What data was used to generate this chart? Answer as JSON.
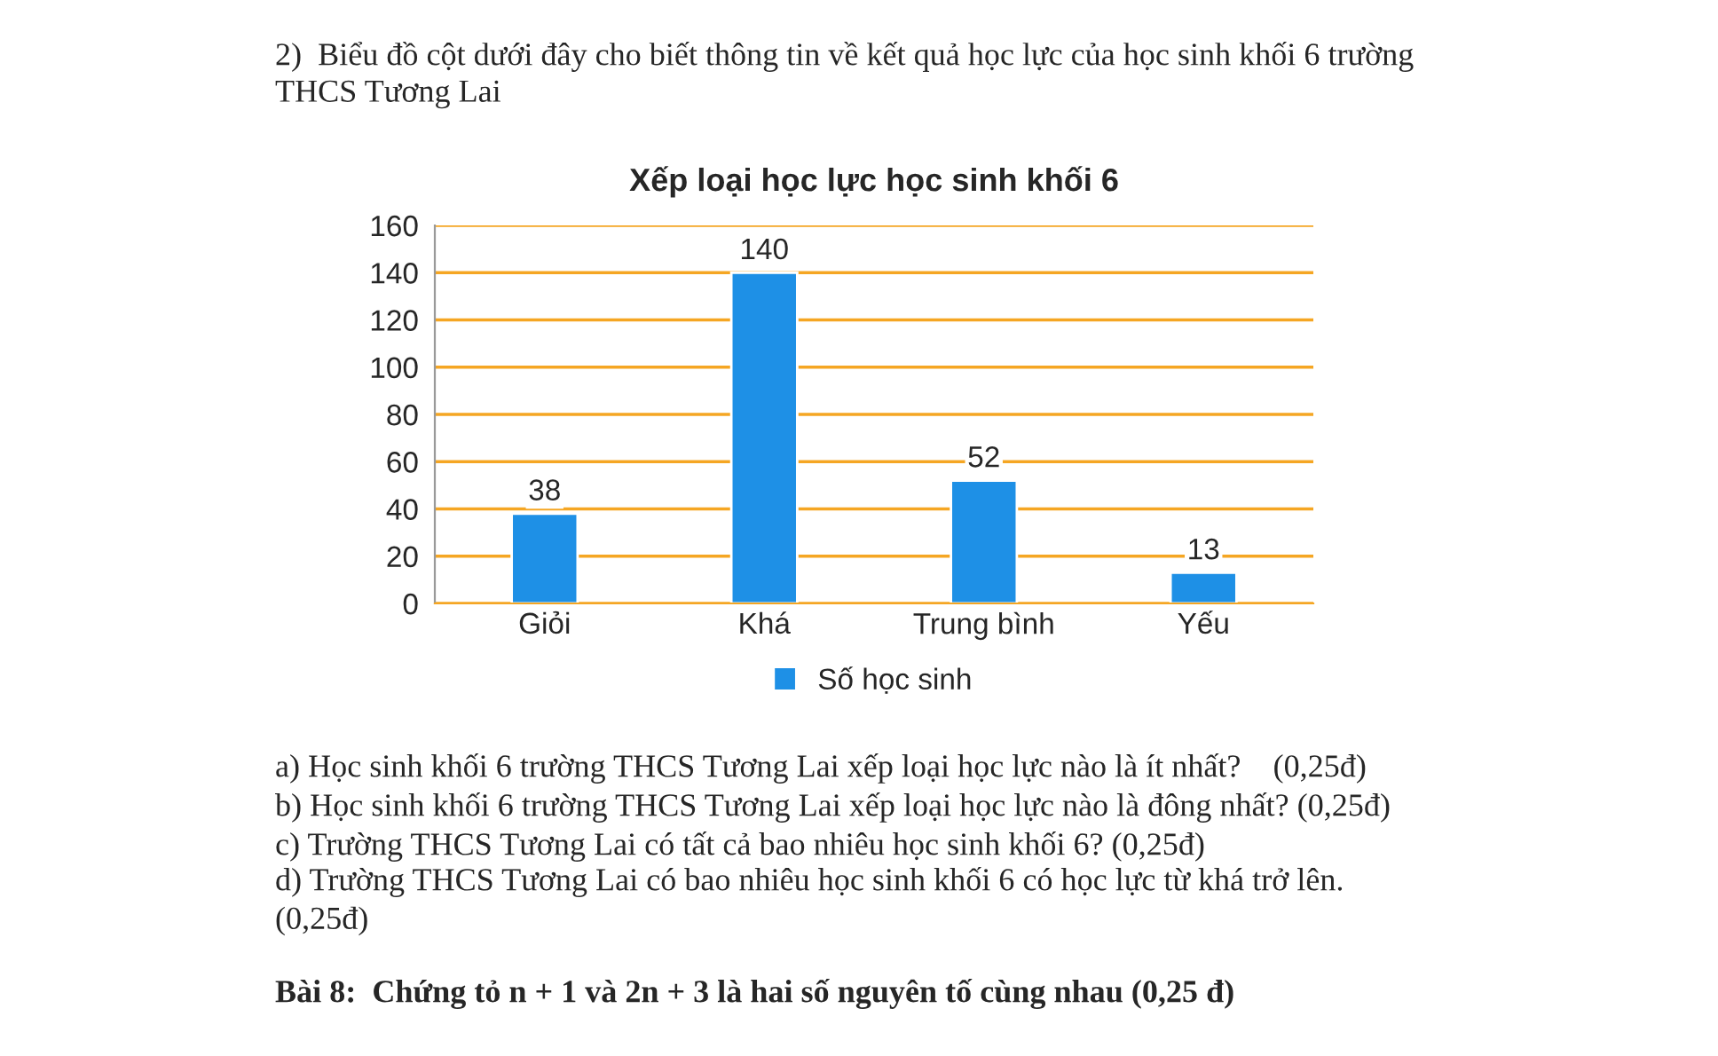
{
  "chart_data": {
    "type": "bar",
    "title": "Xếp loại học lực học sinh khối 6",
    "categories": [
      "Giỏi",
      "Khá",
      "Trung bình",
      "Yếu"
    ],
    "series": [
      {
        "name": "Số học sinh",
        "color": "#1e90e6",
        "values": [
          38,
          140,
          52,
          13
        ]
      }
    ],
    "ylim": [
      0,
      160
    ],
    "yticks": [
      0,
      20,
      40,
      60,
      80,
      100,
      120,
      140,
      160
    ],
    "grid": "y",
    "legend": "bottom",
    "data_labels": true,
    "annotations": [
      "2)  Biểu đồ cột dưới đây cho biết thông tin về kết quả học lực của học sinh khối 6 trường",
      "THCS Tương Lai",
      "a) Học sinh khối 6 trường THCS Tương Lai xếp loại học lực nào là ít nhất?    (0,25đ)",
      "b) Học sinh khối 6 trường THCS Tương Lai xếp loại học lực nào là đông nhất? (0,25đ)",
      "c) Trường THCS Tương Lai có tất cả bao nhiêu học sinh khối 6? (0,25đ)",
      "d) Trường THCS Tương Lai có bao nhiêu học sinh khối 6 có học lực từ khá trở lên.",
      "(0,25đ)",
      "Bài 8:  Chứng tỏ n + 1 và 2n + 3 là hai số nguyên tố cùng nhau (0,25 đ)"
    ]
  }
}
